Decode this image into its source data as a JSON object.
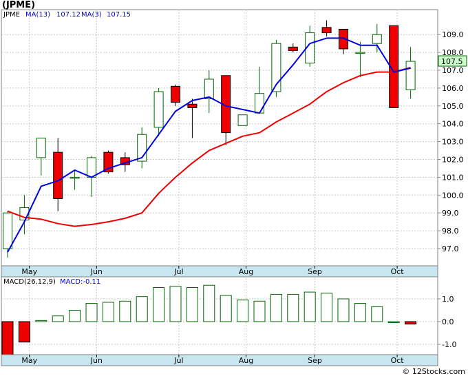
{
  "title": "(JPME)",
  "footer": "© 12Stocks.com",
  "chart_data": {
    "type": "candlestick",
    "ticker": "JPME",
    "legend": {
      "ticker": "JPME",
      "ma13": "MA(13)",
      "ma13_value": "107.12",
      "ma3": "MA(3)",
      "ma3_value": "107.15"
    },
    "last_price_label": "107.5",
    "price_axis": {
      "min": 96.0,
      "max": 110.0,
      "ticks": [
        97.0,
        98.0,
        99.0,
        100.0,
        101.0,
        102.0,
        103.0,
        104.0,
        105.0,
        106.0,
        107.0,
        108.0,
        109.0
      ]
    },
    "months": [
      {
        "label": "May",
        "at": 1.3
      },
      {
        "label": "Jun",
        "at": 5.3
      },
      {
        "label": "Jul",
        "at": 10.2
      },
      {
        "label": "Aug",
        "at": 14.2
      },
      {
        "label": "Sep",
        "at": 18.3
      },
      {
        "label": "Oct",
        "at": 23.2
      }
    ],
    "candles": [
      {
        "o": 97.0,
        "h": 99.1,
        "l": 96.5,
        "c": 99.0
      },
      {
        "o": 98.6,
        "h": 100.0,
        "l": 97.8,
        "c": 99.3
      },
      {
        "o": 102.1,
        "h": 103.2,
        "l": 101.1,
        "c": 103.2
      },
      {
        "o": 102.4,
        "h": 103.2,
        "l": 99.1,
        "c": 99.8
      },
      {
        "o": 101.0,
        "h": 101.4,
        "l": 100.3,
        "c": 101.0
      },
      {
        "o": 101.0,
        "h": 102.2,
        "l": 99.9,
        "c": 102.1
      },
      {
        "o": 102.4,
        "h": 102.5,
        "l": 101.2,
        "c": 101.3
      },
      {
        "o": 102.1,
        "h": 102.4,
        "l": 101.3,
        "c": 101.7
      },
      {
        "o": 101.9,
        "h": 103.8,
        "l": 101.5,
        "c": 103.4
      },
      {
        "o": 103.8,
        "h": 106.0,
        "l": 103.3,
        "c": 105.8
      },
      {
        "o": 106.1,
        "h": 106.2,
        "l": 105.0,
        "c": 105.2
      },
      {
        "o": 105.1,
        "h": 105.4,
        "l": 103.2,
        "c": 104.9
      },
      {
        "o": 105.4,
        "h": 107.0,
        "l": 104.6,
        "c": 106.5
      },
      {
        "o": 106.7,
        "h": 106.7,
        "l": 102.8,
        "c": 103.5
      },
      {
        "o": 103.9,
        "h": 104.5,
        "l": 103.9,
        "c": 104.5
      },
      {
        "o": 104.6,
        "h": 107.2,
        "l": 104.6,
        "c": 105.7
      },
      {
        "o": 105.8,
        "h": 108.7,
        "l": 105.5,
        "c": 108.5
      },
      {
        "o": 108.3,
        "h": 108.5,
        "l": 108.0,
        "c": 108.1
      },
      {
        "o": 107.4,
        "h": 109.5,
        "l": 107.2,
        "c": 109.1
      },
      {
        "o": 109.4,
        "h": 109.8,
        "l": 108.9,
        "c": 109.1
      },
      {
        "o": 109.3,
        "h": 109.3,
        "l": 107.9,
        "c": 108.2
      },
      {
        "o": 108.0,
        "h": 108.6,
        "l": 106.6,
        "c": 108.0
      },
      {
        "o": 108.5,
        "h": 109.6,
        "l": 108.0,
        "c": 109.0
      },
      {
        "o": 109.5,
        "h": 109.5,
        "l": 104.9,
        "c": 104.9
      },
      {
        "o": 105.9,
        "h": 108.3,
        "l": 105.4,
        "c": 107.5
      }
    ],
    "ma13": [
      96.8,
      98.5,
      100.5,
      100.8,
      101.4,
      101.0,
      101.5,
      101.8,
      102.1,
      103.4,
      104.7,
      105.3,
      105.5,
      105.0,
      104.8,
      104.6,
      106.2,
      107.3,
      108.5,
      108.8,
      108.8,
      108.4,
      108.4,
      106.9,
      107.12
    ],
    "ma3": [
      99.1,
      98.75,
      98.65,
      98.4,
      98.25,
      98.35,
      98.5,
      98.7,
      99.0,
      100.1,
      101.0,
      101.8,
      102.5,
      102.9,
      103.3,
      103.5,
      104.1,
      104.6,
      105.1,
      105.8,
      106.3,
      106.7,
      106.9,
      106.9,
      107.15
    ],
    "ma_colors": {
      "ma13": "#0000dd",
      "ma3": "#ee0000"
    },
    "candle_colors": {
      "up_fill": "#ffffff",
      "up_border": "#006600",
      "down": "#ee0000"
    },
    "macd": {
      "label": "MACD(26,12,9)",
      "value_label": "MACD:-0.11",
      "axis": {
        "min": -1.5,
        "max": 1.7,
        "ticks": [
          -1.0,
          0.0,
          1.0
        ]
      },
      "bars": [
        -1.5,
        -0.9,
        0.05,
        0.25,
        0.5,
        0.8,
        0.85,
        0.9,
        1.1,
        1.5,
        1.55,
        1.5,
        1.6,
        1.15,
        0.95,
        0.9,
        1.2,
        1.2,
        1.3,
        1.25,
        1.0,
        0.8,
        0.65,
        0.0,
        -0.11
      ]
    }
  }
}
